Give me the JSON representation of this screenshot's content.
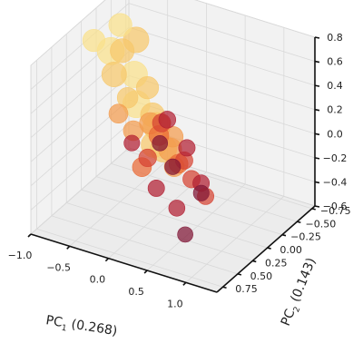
{
  "chart_data": {
    "type": "scatter3d",
    "title": "",
    "xlabel_main": "PC",
    "xlabel_sub": "1",
    "xlabel_rest": " (0.268)",
    "ylabel_main": "PC",
    "ylabel_sub": "2",
    "ylabel_rest": " (0.143)",
    "zlabel": "",
    "xlim": [
      -1.0,
      1.4
    ],
    "ylim": [
      -0.8,
      0.85
    ],
    "zlim": [
      -0.6,
      0.8
    ],
    "x_ticks": [
      "−1.0",
      "−0.5",
      "0.0",
      "0.5",
      "1.0"
    ],
    "x_tick_values": [
      -1.0,
      -0.5,
      0.0,
      0.5,
      1.0
    ],
    "y_ticks": [
      "−0.75",
      "−0.50",
      "−0.25",
      "0.00",
      "0.25",
      "0.50",
      "0.75"
    ],
    "y_tick_values": [
      -0.75,
      -0.5,
      -0.25,
      0.0,
      0.25,
      0.5,
      0.75
    ],
    "z_ticks": [
      "−0.6",
      "−0.4",
      "−0.2",
      "0.0",
      "0.2",
      "0.4",
      "0.6",
      "0.8"
    ],
    "z_tick_values": [
      -0.6,
      -0.4,
      -0.2,
      0.0,
      0.2,
      0.4,
      0.6,
      0.8
    ],
    "grid": true,
    "colormap": [
      "#f9e08a",
      "#f6c86b",
      "#f39b4e",
      "#ea6a35",
      "#d64232",
      "#b21f32",
      "#7f1535"
    ],
    "points": [
      [
        -0.85,
        -0.3,
        0.45,
        0.05,
        1.0
      ],
      [
        -0.7,
        -0.5,
        0.2,
        0.08,
        0.95
      ],
      [
        -0.6,
        -0.4,
        0.55,
        0.1,
        0.9
      ],
      [
        -0.55,
        -0.1,
        0.6,
        0.12,
        0.8
      ],
      [
        -0.5,
        0.1,
        0.5,
        0.15,
        0.85
      ],
      [
        -0.45,
        -0.55,
        -0.2,
        0.1,
        1.0
      ],
      [
        -0.4,
        -0.6,
        -0.4,
        0.12,
        0.95
      ],
      [
        -0.35,
        -0.35,
        0.0,
        0.2,
        0.8
      ],
      [
        -0.3,
        -0.2,
        0.3,
        0.22,
        0.7
      ],
      [
        -0.25,
        0.2,
        0.4,
        0.18,
        0.6
      ],
      [
        -0.2,
        -0.45,
        -0.3,
        0.25,
        0.75
      ],
      [
        -0.15,
        -0.05,
        0.1,
        0.3,
        0.65
      ],
      [
        -0.1,
        0.3,
        0.2,
        0.35,
        0.55
      ],
      [
        -0.05,
        -0.3,
        -0.1,
        0.4,
        0.6
      ],
      [
        0.0,
        0.0,
        0.05,
        0.45,
        0.55
      ],
      [
        0.05,
        0.35,
        -0.05,
        0.5,
        0.5
      ],
      [
        0.1,
        -0.2,
        -0.25,
        0.55,
        0.5
      ],
      [
        0.15,
        0.15,
        0.25,
        0.6,
        0.45
      ],
      [
        0.2,
        0.45,
        0.1,
        0.65,
        0.42
      ],
      [
        0.25,
        -0.1,
        -0.15,
        0.7,
        0.4
      ],
      [
        0.3,
        0.25,
        0.35,
        0.75,
        0.38
      ],
      [
        0.35,
        0.5,
        -0.1,
        0.8,
        0.35
      ],
      [
        0.4,
        0.05,
        0.05,
        0.85,
        0.35
      ],
      [
        0.5,
        0.35,
        -0.3,
        0.9,
        0.33
      ],
      [
        0.6,
        0.55,
        0.15,
        0.95,
        0.3
      ],
      [
        0.7,
        0.2,
        -0.2,
        0.97,
        0.3
      ],
      [
        0.8,
        0.6,
        -0.35,
        1.0,
        0.28
      ],
      [
        -0.8,
        0.05,
        0.7,
        0.05,
        0.7
      ],
      [
        -0.65,
        -0.2,
        0.75,
        0.06,
        0.75
      ],
      [
        -0.75,
        -0.6,
        -0.1,
        0.03,
        1.0
      ],
      [
        -0.6,
        -0.7,
        -0.45,
        0.1,
        0.9
      ],
      [
        -0.3,
        -0.65,
        -0.55,
        0.3,
        0.55
      ],
      [
        0.0,
        -0.55,
        -0.55,
        0.6,
        0.4
      ],
      [
        0.2,
        -0.45,
        -0.5,
        0.85,
        0.35
      ],
      [
        0.45,
        -0.2,
        -0.45,
        0.7,
        0.35
      ],
      [
        -0.1,
        0.55,
        0.45,
        0.4,
        0.5
      ],
      [
        0.15,
        0.65,
        0.3,
        0.9,
        0.3
      ],
      [
        0.55,
        0.7,
        0.4,
        0.95,
        0.28
      ]
    ]
  }
}
